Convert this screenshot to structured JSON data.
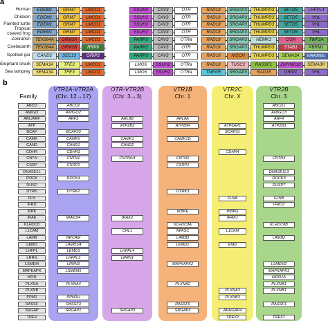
{
  "panel_a": {
    "letter": "a",
    "species": [
      {
        "name": "Human",
        "genes": [
          {
            "label": "EDEM1",
            "color": "#7fa6c9"
          },
          {
            "label": "GRM7",
            "color": "#f2c23a"
          },
          {
            "label": "LMCD1",
            "color": "#e26a2b"
          },
          {
            "label": "SSUH2",
            "color": "#c24fd1"
          },
          {
            "label": "CAV3",
            "color": "#bdbdbd"
          },
          {
            "label": "OTR",
            "color": "#ffffff"
          },
          {
            "label": "RAD18",
            "color": "#e6a25b"
          },
          {
            "label": "SRGAP3",
            "color": "#7ec8b0"
          },
          {
            "label": "THUMPD3",
            "color": "#e8d24a"
          },
          {
            "label": "SETD5",
            "color": "#3fa6a0"
          },
          {
            "label": "LHFPL4",
            "color": "#9a7ad0"
          }
        ]
      },
      {
        "name": "Chicken",
        "genes": [
          {
            "label": "EDEM1",
            "color": "#7fa6c9"
          },
          {
            "label": "GRM7",
            "color": "#f2c23a"
          },
          {
            "label": "LMCD1",
            "color": "#e26a2b"
          },
          {
            "label": "SSUH2",
            "color": "#c24fd1"
          },
          {
            "label": "CAV3",
            "color": "#bdbdbd"
          },
          {
            "label": "OTR",
            "color": "#ffffff"
          },
          {
            "label": "RAD18",
            "color": "#e6a25b"
          },
          {
            "label": "SRGAP3",
            "color": "#7ec8b0"
          },
          {
            "label": "THUMPD3",
            "color": "#e8d24a"
          },
          {
            "label": "SETD5",
            "color": "#3fa6a0"
          },
          {
            "label": "VHL",
            "color": "#8c6bc7"
          }
        ]
      },
      {
        "name": "Painted turtle",
        "genes": [
          {
            "label": "EDEM1",
            "color": "#7fa6c9"
          },
          {
            "label": "GRM7",
            "color": "#f2c23a"
          },
          {
            "label": "LMCD1",
            "color": "#e26a2b"
          },
          {
            "label": "SSUH2",
            "color": "#c24fd1"
          },
          {
            "label": "CAV3",
            "color": "#bdbdbd"
          },
          {
            "label": "OTR",
            "color": "#ffffff"
          },
          {
            "label": "RAD18",
            "color": "#e6a25b"
          },
          {
            "label": "SRGAP3",
            "color": "#7ec8b0"
          },
          {
            "label": "THUMPD3",
            "color": "#e8d24a"
          },
          {
            "label": "SETD5",
            "color": "#3fa6a0"
          },
          {
            "label": "VHL",
            "color": "#8c6bc7"
          }
        ]
      },
      {
        "name": "Tropical clawed frog",
        "genes": [
          {
            "label": "EDEM1",
            "color": "#7fa6c9"
          },
          {
            "label": "GRM7",
            "color": "#f2c23a"
          },
          {
            "label": "LMCD1",
            "color": "#e26a2b"
          },
          {
            "label": "SSUH2",
            "color": "#c24fd1"
          },
          {
            "label": "CAV3",
            "color": "#bdbdbd"
          },
          {
            "label": "OTR",
            "color": "#ffffff"
          },
          {
            "label": "RAD18",
            "color": "#e6a25b"
          },
          {
            "label": "SRGAP3",
            "color": "#7ec8b0"
          },
          {
            "label": "THUMPD3",
            "color": "#e8d24a"
          },
          {
            "label": "SETD5",
            "color": "#3fa6a0"
          },
          {
            "label": "VHL",
            "color": "#8c6bc7"
          }
        ]
      },
      {
        "name": "Zebrafish",
        "genes": [
          {
            "label": "TEX264A",
            "color": "#c7a05c"
          },
          {
            "label": "GRM2A",
            "color": "#d4473b"
          },
          {
            "label": "LMCD1",
            "color": "#e26a2b"
          },
          {
            "label": "PARP3",
            "color": "#2fa87a"
          },
          {
            "label": "CAV3",
            "color": "#bdbdbd"
          },
          {
            "label": "OTRa",
            "color": "#ffffff"
          },
          {
            "label": "RAD18",
            "color": "#e6a25b"
          },
          {
            "label": "SRGAP3",
            "color": "#7ec8b0"
          },
          {
            "label": "HEMK1",
            "color": "#bfe0d8"
          },
          {
            "label": "CISH",
            "color": "#e05d8c"
          },
          {
            "label": "TWF2A",
            "color": "#6fae5a"
          }
        ]
      },
      {
        "name": "Coelacanth",
        "genes": [
          {
            "label": "TEX264A",
            "color": "#c7a05c"
          },
          {
            "label": "GRM2B",
            "color": "#d4473b"
          },
          {
            "label": "RRP9",
            "color": "#3f7a3a"
          },
          {
            "label": "PARP3",
            "color": "#2fa87a"
          },
          {
            "label": "CAV3",
            "color": "#bdbdbd"
          },
          {
            "label": "OTR",
            "color": "#ffffff"
          },
          {
            "label": "RAD18",
            "color": "#e6a25b"
          },
          {
            "label": "SRGAP3",
            "color": "#7ec8b0"
          },
          {
            "label": "THUMPD3",
            "color": "#e8d24a"
          },
          {
            "label": "STAB1",
            "color": "#c23b4a"
          },
          {
            "label": "PBRM1",
            "color": "#8ec76a"
          }
        ]
      },
      {
        "name": "Spotted gar",
        "genes": [
          {
            "label": "CAND2",
            "color": "#bfe0f0"
          },
          {
            "label": "SEC13",
            "color": "#6fb7e0"
          },
          {
            "label": "GRIP2",
            "color": "#5a2f7a"
          },
          {
            "label": "PARP3",
            "color": "#2fa87a"
          },
          {
            "label": "CAV3",
            "color": "#bdbdbd"
          },
          {
            "label": "OTR",
            "color": "#ffffff"
          },
          {
            "label": "RAD18",
            "color": "#e6a25b"
          },
          {
            "label": "NISCH",
            "color": "#d98a3a"
          },
          {
            "label": "THUMPD3",
            "color": "#e8d24a"
          },
          {
            "label": "SEMA3A",
            "color": "#a8d24a"
          },
          {
            "label": "KIAA0895L",
            "color": "#4a6fae"
          }
        ]
      },
      {
        "name": "Elephant shark",
        "genes": [
          {
            "label": "SEMA3A",
            "color": "#f4e27a"
          },
          {
            "label": "TFE3",
            "color": "#e8f07a"
          },
          {
            "label": "LMCD1",
            "color": "#e26a2b"
          },
          {
            "label": "LMO6",
            "color": "#ffffff"
          },
          {
            "label": "SSUH2",
            "color": "#c24fd1"
          },
          {
            "label": "OTRa",
            "color": "#ffffff"
          },
          {
            "label": "RAD18",
            "color": "#e6a25b"
          },
          {
            "label": "TUSC2",
            "color": "#f4b7b7"
          },
          {
            "label": "RASSF1",
            "color": "#8ac23a"
          },
          {
            "label": "ZMYND10",
            "color": "#c24fd1"
          },
          {
            "label": "SEMA3H",
            "color": "#f0d47a"
          }
        ]
      },
      {
        "name": "Sea lamprey",
        "genes": [
          {
            "label": "SEMA3A",
            "color": "#f4e27a"
          },
          {
            "label": "TFE3",
            "color": "#e8f07a"
          },
          {
            "label": "LMCD1",
            "color": "#e26a2b"
          },
          {
            "label": "LMO6",
            "color": "#ffffff"
          },
          {
            "label": "SSUH2",
            "color": "#c24fd1"
          },
          {
            "label": "OTRa",
            "color": "#ffffff"
          },
          {
            "label": "TMEM5",
            "color": "#5ac9d8"
          },
          {
            "label": "SRGAP3",
            "color": "#7ec8b0"
          },
          {
            "label": "RAD18",
            "color": "#e6a25b"
          },
          {
            "label": "GRIP1",
            "color": "#8c6bc7"
          },
          {
            "label": "VHL",
            "color": "#8c6bc7"
          }
        ]
      }
    ]
  },
  "panel_b": {
    "letter": "b",
    "family_header": "Family",
    "families": [
      "ABCD",
      "AMIGO",
      "ARL/ARF",
      "ATP",
      "BCAP",
      "CAMK",
      "CAND",
      "CDHR",
      "CNTN",
      "CSRP",
      "DNASE1L",
      "DOCK",
      "DUSP",
      "DYRK",
      "FLN",
      "IFRD",
      "IKBK",
      "IRAK",
      "KLHDC8",
      "L1CAM",
      "LAMB",
      "LEMD",
      "LHFPL",
      "LRRN",
      "LSMEM",
      "MAPKAPK",
      "MON",
      "PLXNA",
      "PLXNB",
      "PPM1",
      "RASSF",
      "SRGAP",
      "TREX"
    ],
    "columns": [
      {
        "name": "VTR1A-VTR2A",
        "chr": "(Chr. 12→17)",
        "color": "#a9a3f2",
        "genes": {
          "0": "ABCD2",
          "1": "AMIGO2",
          "2": "ARF3",
          "4": "BCAP29",
          "5": "CAMKV",
          "6": "CAND1",
          "7": "CDHR3",
          "8": "CNTN1",
          "9": "CSRP2",
          "11": "DOCK4",
          "13": "DYRK2",
          "17": "IRAK3/4",
          "20": "NRCAM",
          "21": "LAMB1/4",
          "22": "LEMD3",
          "23": "LHFPL3",
          "24": "LRRN3",
          "25": "LSMEM1",
          "27": "PLXNA4",
          "29": "PPM1H",
          "30": "RASSF3",
          "31": "SRGAP1"
        }
      },
      {
        "name": "OTR-VTR2B",
        "chr": "(Chr. 3→3)",
        "color": "#d7a6e8",
        "genes": {
          "2": "ARL8B",
          "3": "ATP2B2",
          "5": "CAMK1",
          "6": "CAND2",
          "8": "CNTN6/4",
          "17": "IRAK2",
          "19": "CHL1",
          "22": "LHFPL4",
          "23": "LRRN1",
          "31": "SRGAP3"
        }
      },
      {
        "name": "VTR1B",
        "chr": "Chr. 1",
        "color": "#f5b27a",
        "genes": {
          "2": "ARL8A",
          "3": "ATP2B4",
          "5": "CAMK1G",
          "8": "CNTN2",
          "9": "CSRP1",
          "13": "DYRK3",
          "16": "IKBKE",
          "18": "KLHDC8A",
          "19": "NFASC",
          "20": "LAMB3",
          "21": "LEMD1",
          "24": "MAPKAPK2",
          "27": "PLXNA2",
          "30": "RASSF5",
          "31": "SRGAP2"
        }
      },
      {
        "name": "VTR2C",
        "chr": "Chr. X",
        "color": "#f5ee74",
        "genes": {
          "3": "ATP6AP1",
          "4": "BCAP31",
          "7": "CDHR4",
          "14": "FLNA",
          "16": "IKBKG",
          "17": "IRAK1",
          "19": "L1CAM",
          "21": "EMD",
          "28": "PLXNA3",
          "29": "PLXNB3",
          "31": "ARHGAP4",
          "32": "TREX2"
        }
      },
      {
        "name": "VTR2B",
        "chr": "Chr. 3",
        "color": "#a8d68a",
        "genes": {
          "0": "ABCD1",
          "1": "AMIGO3",
          "2": "ARF4",
          "3": "ATP2B3",
          "8": "CNTN3",
          "10": "DNASE1L3",
          "11": "DOCK3",
          "12": "DUSP7",
          "14": "FLNB",
          "15": "IFRD2",
          "18": "KLHDC8B",
          "20": "LAMB2",
          "24": "LSMEM2",
          "25": "MAPKAPK3",
          "26": "MON1A",
          "27": "PLXNA1",
          "28": "PLXNB1",
          "30": "RASSF1",
          "32": "TREX1"
        }
      }
    ]
  }
}
